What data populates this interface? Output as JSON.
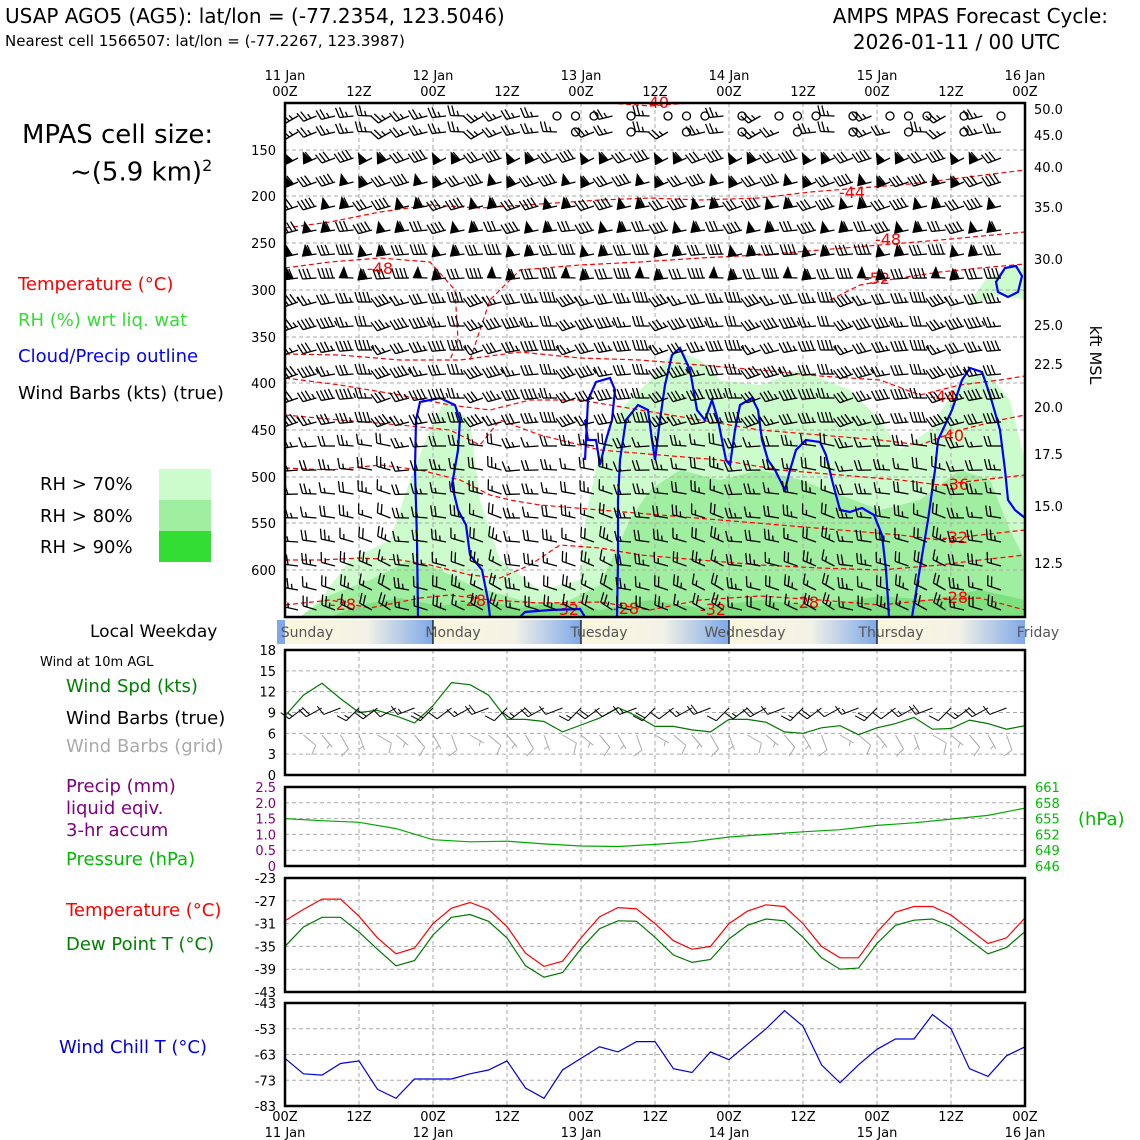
{
  "header": {
    "title_left": "USAP AGO5 (AG5): lat/lon = (-77.2354, 123.5046)",
    "subtitle_left": "Nearest cell 1566507: lat/lon = (-77.2267, 123.3987)",
    "title_right_1": "AMPS MPAS Forecast Cycle:",
    "title_right_2": "2026-01-11 / 00 UTC"
  },
  "legend": {
    "cell_size_1": "MPAS cell size:",
    "cell_size_2": "~(5.9 km)",
    "cell_size_sup": "2",
    "temperature": "Temperature (°C)",
    "rh": "RH (%) wrt liq. wat",
    "cloud": "Cloud/Precip outline",
    "barbs": "Wind Barbs (kts) (true)",
    "rh70": "RH > 70%",
    "rh80": "RH > 80%",
    "rh90": "RH > 90%",
    "rh_colors": [
      "#ccfccc",
      "#a0eea0",
      "#33dd33"
    ]
  },
  "time_axis": {
    "top_days": [
      "11 Jan",
      "12 Jan",
      "13 Jan",
      "14 Jan",
      "15 Jan",
      "16 Jan"
    ],
    "hours": [
      "00Z",
      "12Z",
      "00Z",
      "12Z",
      "00Z",
      "12Z",
      "00Z",
      "12Z",
      "00Z",
      "12Z",
      "00Z"
    ]
  },
  "weekday": {
    "label": "Local Weekday",
    "days": [
      "Sunday",
      "Monday",
      "Tuesday",
      "Wednesday",
      "Thursday",
      "Friday"
    ]
  },
  "chart_data": [
    {
      "type": "heatmap",
      "name": "time-height cross-section",
      "x": "forecast hour 0-120",
      "ylabel_left": "pressure (hPa)",
      "ylabel_right": "kft MSL",
      "pressure_ticks": [
        "150",
        "200",
        "250",
        "300",
        "350",
        "400",
        "450",
        "500",
        "550",
        "600"
      ],
      "height_ticks": [
        "50.0",
        "45.0",
        "40.0",
        "35.0",
        "30.0",
        "25.0",
        "22.5",
        "20.0",
        "17.5",
        "15.0",
        "12.5"
      ],
      "temperature_contour_labels": [
        "-40",
        "-44",
        "-48",
        "-48",
        "-52",
        "-44",
        "-40",
        "-36",
        "-32",
        "-28",
        "-28",
        "-32",
        "-28",
        "-32",
        "-28",
        "-28"
      ],
      "temperature_levels": {
        "-44": 195,
        "-48": 265,
        "-40": 430,
        "-36": 485,
        "-32": 545,
        "-28": 600
      }
    },
    {
      "type": "line",
      "name": "Wind at 10m AGL",
      "title": "Wind at 10m AGL",
      "series_label": "Wind Spd (kts)",
      "barbs_true_label": "Wind Barbs (true)",
      "barbs_grid_label": "Wind Barbs (grid)",
      "ylim": [
        0,
        18
      ],
      "yticks": [
        "18",
        "15",
        "12",
        "9",
        "6",
        "3",
        "0"
      ],
      "hours": [
        0,
        3,
        6,
        9,
        12,
        15,
        18,
        21,
        24,
        27,
        30,
        33,
        36,
        39,
        42,
        45,
        48,
        51,
        54,
        57,
        60,
        63,
        66,
        69,
        72,
        75,
        78,
        81,
        84,
        87,
        90,
        93,
        96,
        99,
        102,
        105,
        108,
        111,
        114,
        117,
        120
      ],
      "values": [
        8.5,
        11.5,
        13.2,
        11,
        9,
        9.3,
        8.5,
        7.5,
        10,
        13.3,
        13,
        11.5,
        8,
        8,
        7.7,
        6.2,
        7.2,
        8.2,
        9.7,
        8.5,
        7,
        7,
        6.5,
        6.2,
        8,
        8,
        7.6,
        6.2,
        6,
        6.8,
        7.1,
        5.8,
        6.8,
        7.4,
        8.3,
        6.6,
        6.7,
        7.9,
        7.4,
        6.6,
        7.1
      ]
    },
    {
      "type": "line",
      "name": "Precip and Pressure",
      "precip_label_1": "Precip (mm)",
      "precip_label_2": "liquid eqiv.",
      "precip_label_3": "3-hr accum",
      "pressure_label": "Pressure (hPa)",
      "right_unit": "(hPa)",
      "precip_ticks": [
        "2.5",
        "2.0",
        "1.5",
        "1.0",
        "0.5",
        "0"
      ],
      "pressure_ticks": [
        "661",
        "658",
        "655",
        "652",
        "649",
        "646"
      ],
      "pressure_ylim": [
        646,
        661
      ],
      "precip_values_all_zero": 0,
      "hours": [
        0,
        6,
        12,
        18,
        24,
        30,
        36,
        42,
        48,
        54,
        60,
        66,
        72,
        78,
        84,
        90,
        96,
        102,
        108,
        114,
        120
      ],
      "pressure_values": [
        655,
        654.6,
        654.3,
        653.1,
        651,
        650.6,
        650.7,
        650.2,
        649.8,
        649.7,
        650.1,
        650.6,
        651.5,
        652,
        652.5,
        652.9,
        653.7,
        654.2,
        654.9,
        655.6,
        657
      ]
    },
    {
      "type": "line",
      "name": "Temperature and Dew Point",
      "temp_label": "Temperature (°C)",
      "dew_label": "Dew Point T (°C)",
      "ylim": [
        -43,
        -23
      ],
      "yticks": [
        "-23",
        "-27",
        "-31",
        "-35",
        "-39",
        "-43"
      ],
      "hours": [
        0,
        3,
        6,
        9,
        12,
        15,
        18,
        21,
        24,
        27,
        30,
        33,
        36,
        39,
        42,
        45,
        48,
        51,
        54,
        57,
        60,
        63,
        66,
        69,
        72,
        75,
        78,
        81,
        84,
        87,
        90,
        93,
        96,
        99,
        102,
        105,
        108,
        111,
        114,
        117,
        120
      ],
      "temperature": [
        -30.5,
        -28.5,
        -26.7,
        -26.7,
        -29.7,
        -33.5,
        -36.3,
        -35.3,
        -31,
        -28.3,
        -27.3,
        -28.5,
        -31.5,
        -36.2,
        -38.5,
        -37.6,
        -33.5,
        -29.8,
        -28.2,
        -28.4,
        -31,
        -34,
        -35.5,
        -35,
        -31,
        -28.8,
        -27.7,
        -28,
        -31,
        -35,
        -37,
        -37,
        -32.5,
        -29,
        -28,
        -28,
        -29.5,
        -32,
        -34.5,
        -33.5,
        -30
      ],
      "dewpoint": [
        -35,
        -31.6,
        -29.9,
        -29.9,
        -32.5,
        -35.5,
        -38.4,
        -37.5,
        -33,
        -29.9,
        -29.4,
        -30.6,
        -33.5,
        -38.4,
        -40.4,
        -39.6,
        -35.4,
        -31.9,
        -30.5,
        -30.6,
        -33.4,
        -36.5,
        -37.8,
        -37.3,
        -33.7,
        -31.3,
        -30.2,
        -30.5,
        -33.4,
        -37,
        -39,
        -38.8,
        -34.5,
        -31.3,
        -30.4,
        -30.2,
        -31.5,
        -33.9,
        -36.3,
        -35.2,
        -32.4
      ]
    },
    {
      "type": "line",
      "name": "Wind Chill",
      "label": "Wind Chill T (°C)",
      "ylim": [
        -83,
        -43
      ],
      "yticks": [
        "-43",
        "-53",
        "-63",
        "-73",
        "-83"
      ],
      "hours": [
        0,
        3,
        6,
        9,
        12,
        15,
        18,
        21,
        24,
        27,
        30,
        33,
        36,
        39,
        42,
        45,
        48,
        51,
        54,
        57,
        60,
        63,
        66,
        69,
        72,
        75,
        78,
        81,
        84,
        87,
        90,
        93,
        96,
        99,
        102,
        105,
        108,
        111,
        114,
        117,
        120
      ],
      "values": [
        -64.5,
        -70.5,
        -71,
        -66.5,
        -65.5,
        -76.5,
        -80,
        -72.5,
        -72.5,
        -72.5,
        -70.5,
        -69,
        -65.5,
        -76,
        -80,
        -69,
        -64.5,
        -60,
        -62,
        -58,
        -58,
        -68.5,
        -70,
        -62,
        -65,
        -59,
        -53,
        -46,
        -52,
        -67,
        -74,
        -67,
        -61,
        -57,
        -57,
        -47.5,
        -53,
        -68.5,
        -71.5,
        -63.5,
        -60
      ]
    }
  ],
  "bottom_axis": {
    "hours": [
      "00Z",
      "12Z",
      "00Z",
      "12Z",
      "00Z",
      "12Z",
      "00Z",
      "12Z",
      "00Z",
      "12Z",
      "00Z"
    ],
    "days": [
      "11 Jan",
      "12 Jan",
      "13 Jan",
      "14 Jan",
      "15 Jan",
      "16 Jan"
    ]
  },
  "colors": {
    "temperature": "#ff0000",
    "rh_text": "#33dd33",
    "cloud": "#0000ff",
    "wind_speed": "#007700",
    "grid_barbs": "#aaaaaa",
    "precip": "#800080",
    "pressure": "#00aa00",
    "dewpoint": "#007700",
    "windchill": "#0000dd"
  }
}
